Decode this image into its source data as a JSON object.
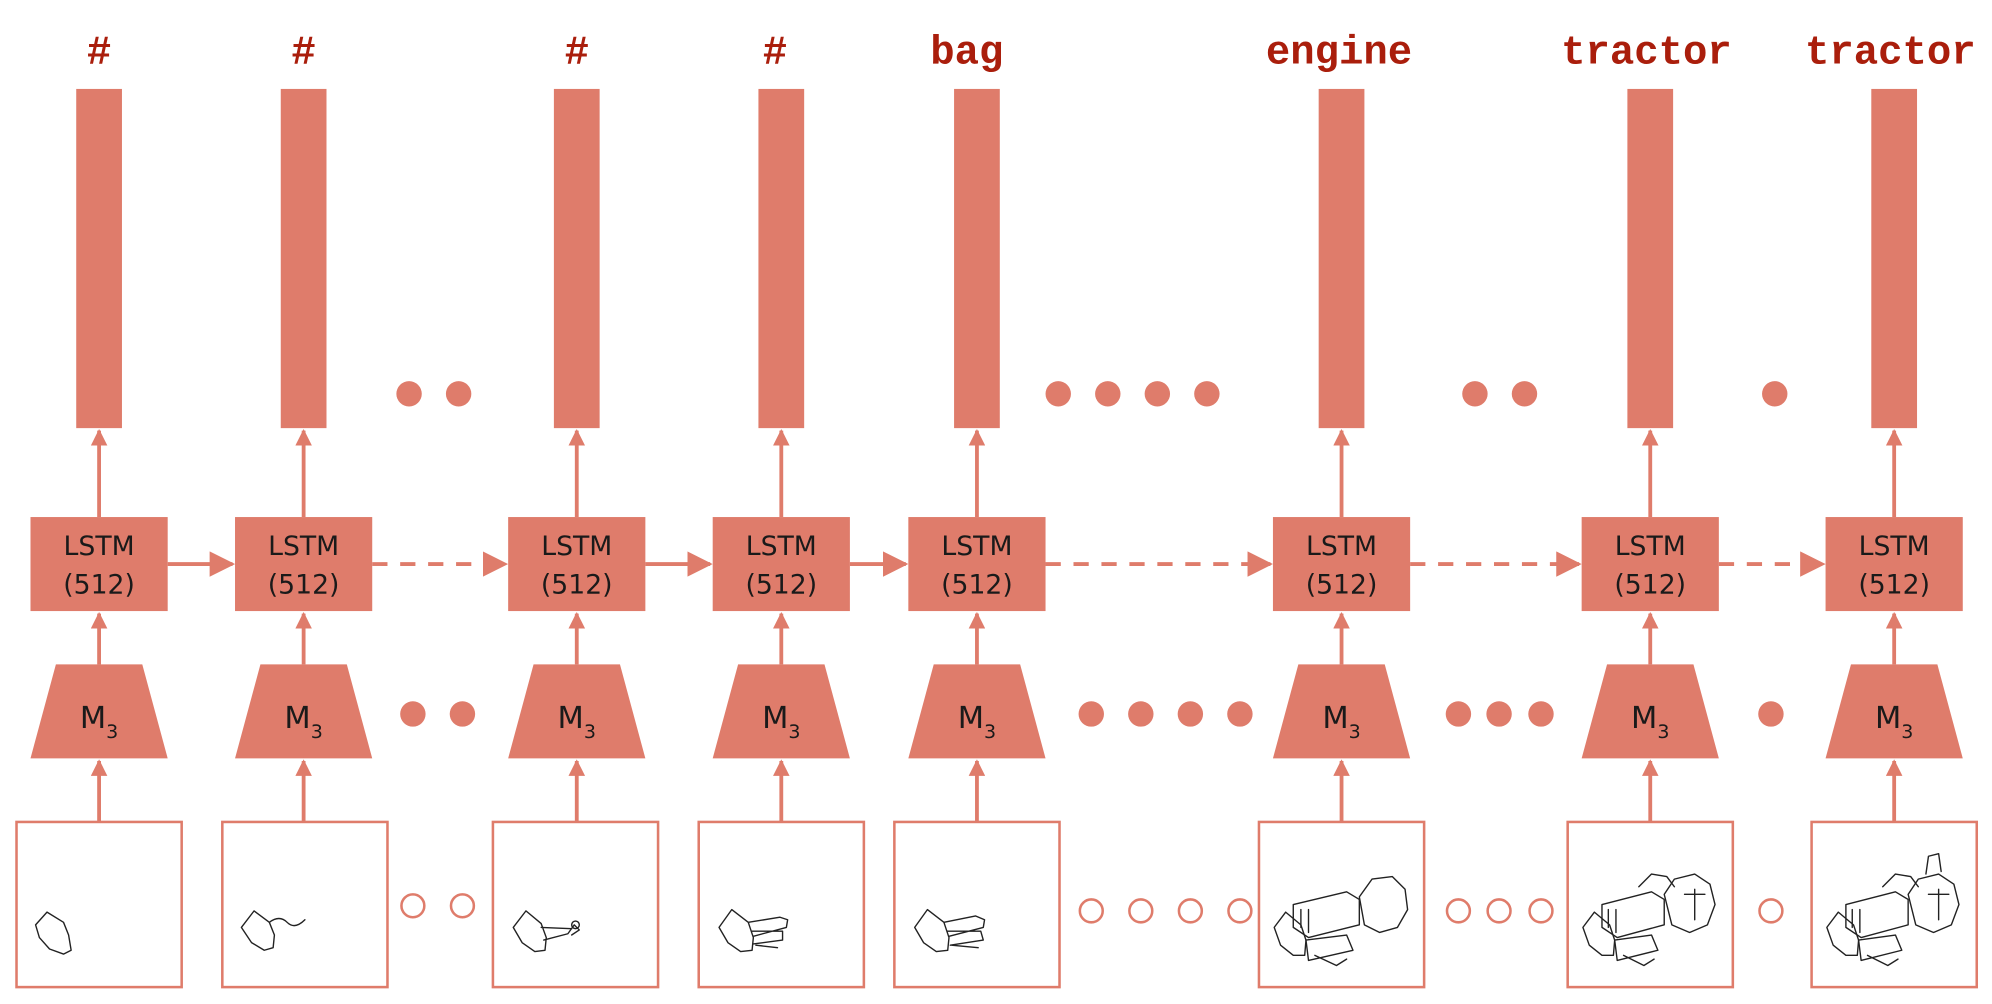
{
  "colors": {
    "block": "#df7c6b",
    "prediction_text": "#aa1e0c",
    "label_text": "#1a1a1a"
  },
  "cell": {
    "lstm_line1": "LSTM",
    "lstm_line2": "(512)",
    "encoder_main": "M",
    "encoder_sub": "3"
  },
  "steps": [
    {
      "prediction": "#"
    },
    {
      "prediction": "#"
    },
    {
      "prediction": "#"
    },
    {
      "prediction": "#"
    },
    {
      "prediction": "bag"
    },
    {
      "prediction": "engine"
    },
    {
      "prediction": "tractor"
    },
    {
      "prediction": "tractor"
    }
  ]
}
